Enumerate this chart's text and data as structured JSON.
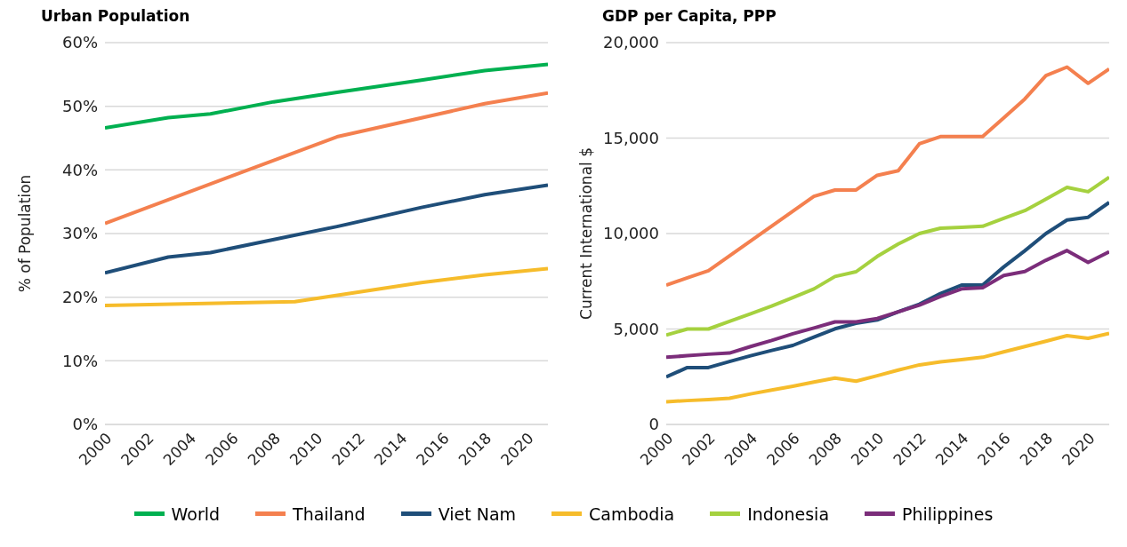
{
  "chart_data": [
    {
      "type": "line",
      "title": "Urban Population",
      "ylabel": "% of Population",
      "xlim": [
        2000,
        2021
      ],
      "xticks": [
        2000,
        2002,
        2004,
        2006,
        2008,
        2010,
        2012,
        2014,
        2016,
        2018,
        2020
      ],
      "ylim": [
        0,
        60
      ],
      "yticks": [
        {
          "value": 0,
          "label": "0%"
        },
        {
          "value": 10,
          "label": "10%"
        },
        {
          "value": 20,
          "label": "20%"
        },
        {
          "value": 30,
          "label": "30%"
        },
        {
          "value": 40,
          "label": "40%"
        },
        {
          "value": 50,
          "label": "50%"
        },
        {
          "value": 60,
          "label": "60%"
        }
      ],
      "grid": "y",
      "legend": "bottom",
      "marker": "none",
      "line_style": "solid",
      "series": [
        {
          "name": "World",
          "color": "#00b050",
          "x": [
            2000,
            2003,
            2005,
            2008,
            2011,
            2015,
            2018,
            2021
          ],
          "values": [
            46.6,
            48.2,
            48.8,
            50.7,
            52.2,
            54.1,
            55.6,
            56.6
          ]
        },
        {
          "name": "Thailand",
          "color": "#f4804f",
          "x": [
            2000,
            2011,
            2018,
            2021
          ],
          "values": [
            31.6,
            45.2,
            50.4,
            52.1
          ]
        },
        {
          "name": "Viet Nam",
          "color": "#1f4e79",
          "x": [
            2000,
            2003,
            2005,
            2011,
            2015,
            2018,
            2021
          ],
          "values": [
            23.8,
            26.3,
            27.0,
            31.1,
            34.1,
            36.1,
            37.6
          ]
        },
        {
          "name": "Cambodia",
          "color": "#f6bc2b",
          "x": [
            2000,
            2009,
            2012,
            2015,
            2018,
            2021
          ],
          "values": [
            18.7,
            19.3,
            20.8,
            22.3,
            23.5,
            24.5
          ]
        }
      ]
    },
    {
      "type": "line",
      "title": "GDP per Capita, PPP",
      "ylabel": "Current International $",
      "xlim": [
        2000,
        2021
      ],
      "xticks": [
        2000,
        2002,
        2004,
        2006,
        2008,
        2010,
        2012,
        2014,
        2016,
        2018,
        2020
      ],
      "ylim": [
        0,
        20000
      ],
      "yticks": [
        {
          "value": 0,
          "label": "0"
        },
        {
          "value": 5000,
          "label": "5,000"
        },
        {
          "value": 10000,
          "label": "10,000"
        },
        {
          "value": 15000,
          "label": "15,000"
        },
        {
          "value": 20000,
          "label": "20,000"
        }
      ],
      "grid": "y",
      "legend": "bottom",
      "marker": "none",
      "line_style": "solid",
      "x": [
        2000,
        2001,
        2002,
        2003,
        2004,
        2005,
        2006,
        2007,
        2008,
        2009,
        2010,
        2011,
        2012,
        2013,
        2014,
        2015,
        2016,
        2017,
        2018,
        2019,
        2020,
        2021
      ],
      "series": [
        {
          "name": "Thailand",
          "color": "#f4804f",
          "values": [
            7300,
            7680,
            8050,
            8830,
            9610,
            10390,
            11170,
            11950,
            12280,
            12280,
            13050,
            13290,
            14700,
            15080,
            15080,
            15080,
            16060,
            17050,
            18270,
            18720,
            17870,
            18620
          ]
        },
        {
          "name": "Indonesia",
          "color": "#a5d13f",
          "values": [
            4680,
            5000,
            5000,
            5400,
            5800,
            6200,
            6650,
            7100,
            7750,
            8000,
            8800,
            9450,
            10000,
            10280,
            10320,
            10380,
            10800,
            11200,
            11800,
            12420,
            12190,
            12950
          ]
        },
        {
          "name": "Viet Nam",
          "color": "#1f4e79",
          "values": [
            2490,
            2980,
            2980,
            3300,
            3600,
            3880,
            4140,
            4580,
            5010,
            5300,
            5470,
            5900,
            6300,
            6860,
            7300,
            7300,
            8250,
            9100,
            10000,
            10710,
            10850,
            11630
          ]
        },
        {
          "name": "Cambodia",
          "color": "#f6bc2b",
          "values": [
            1190,
            1250,
            1300,
            1370,
            1600,
            1800,
            2000,
            2220,
            2430,
            2270,
            2550,
            2850,
            3120,
            3280,
            3400,
            3520,
            3800,
            4080,
            4360,
            4650,
            4510,
            4770
          ]
        },
        {
          "name": "Philippines",
          "color": "#7b2d7a",
          "values": [
            3520,
            3600,
            3680,
            3740,
            4080,
            4400,
            4750,
            5050,
            5370,
            5370,
            5550,
            5900,
            6250,
            6700,
            7100,
            7160,
            7800,
            8010,
            8600,
            9110,
            8490,
            9050
          ]
        }
      ]
    }
  ]
}
